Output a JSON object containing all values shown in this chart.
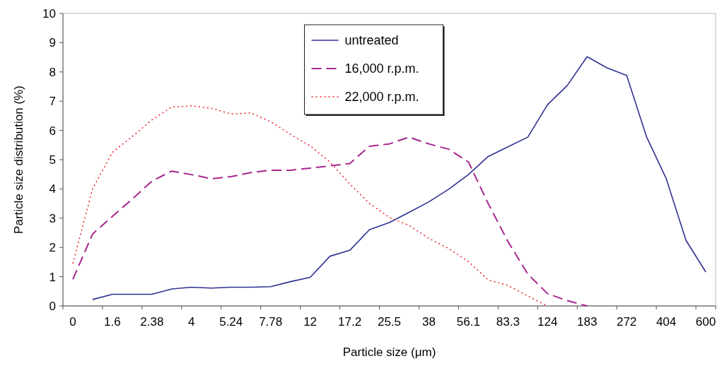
{
  "chart_data": {
    "type": "line",
    "xlabel": "Particle size (μm)",
    "ylabel": "Particle size distribution (%)",
    "categories": [
      "0",
      null,
      "1.6",
      null,
      "2.38",
      null,
      "4",
      null,
      "5.24",
      null,
      "7.78",
      null,
      "12",
      null,
      "17.2",
      null,
      "25.5",
      null,
      "38",
      null,
      "56.1",
      null,
      "83.3",
      null,
      "124",
      null,
      "183",
      null,
      "272",
      null,
      "404",
      null,
      "600"
    ],
    "series": [
      {
        "name": "untreated",
        "color": "#2e3192",
        "line_style": "solid",
        "values": [
          null,
          0.22,
          0.4,
          0.4,
          0.4,
          0.58,
          0.64,
          0.61,
          0.64,
          0.64,
          0.66,
          0.83,
          0.98,
          1.7,
          1.9,
          2.61,
          2.85,
          3.2,
          3.56,
          3.99,
          4.49,
          5.11,
          5.44,
          5.77,
          6.88,
          7.54,
          8.52,
          8.14,
          7.88,
          5.79,
          4.35,
          2.24,
          1.16
        ]
      },
      {
        "name": "16,000 r.p.m.",
        "color": "#a6268f",
        "line_style": "dashed",
        "values": [
          0.91,
          2.46,
          3.06,
          3.65,
          4.27,
          4.61,
          4.49,
          4.35,
          4.42,
          4.56,
          4.64,
          4.64,
          4.71,
          4.79,
          4.87,
          5.46,
          5.54,
          5.77,
          5.54,
          5.36,
          4.92,
          3.5,
          2.2,
          1.09,
          0.42,
          0.18,
          0,
          null,
          null,
          null,
          null,
          null,
          null
        ]
      },
      {
        "name": "22,000 r.p.m.",
        "color": "#ed1c24",
        "line_style": "dotted",
        "values": [
          1.45,
          4.01,
          5.25,
          5.79,
          6.36,
          6.8,
          6.84,
          6.76,
          6.56,
          6.6,
          6.3,
          5.87,
          5.47,
          4.92,
          4.17,
          3.5,
          3.03,
          2.75,
          2.31,
          1.96,
          1.52,
          0.89,
          0.7,
          0.34,
          0,
          null,
          null,
          null,
          null,
          null,
          null,
          null,
          null
        ]
      }
    ],
    "ylim": [
      0,
      10
    ],
    "yticks": [
      0,
      1,
      2,
      3,
      4,
      5,
      6,
      7,
      8,
      9,
      10
    ],
    "grid": false,
    "legend": "top"
  }
}
